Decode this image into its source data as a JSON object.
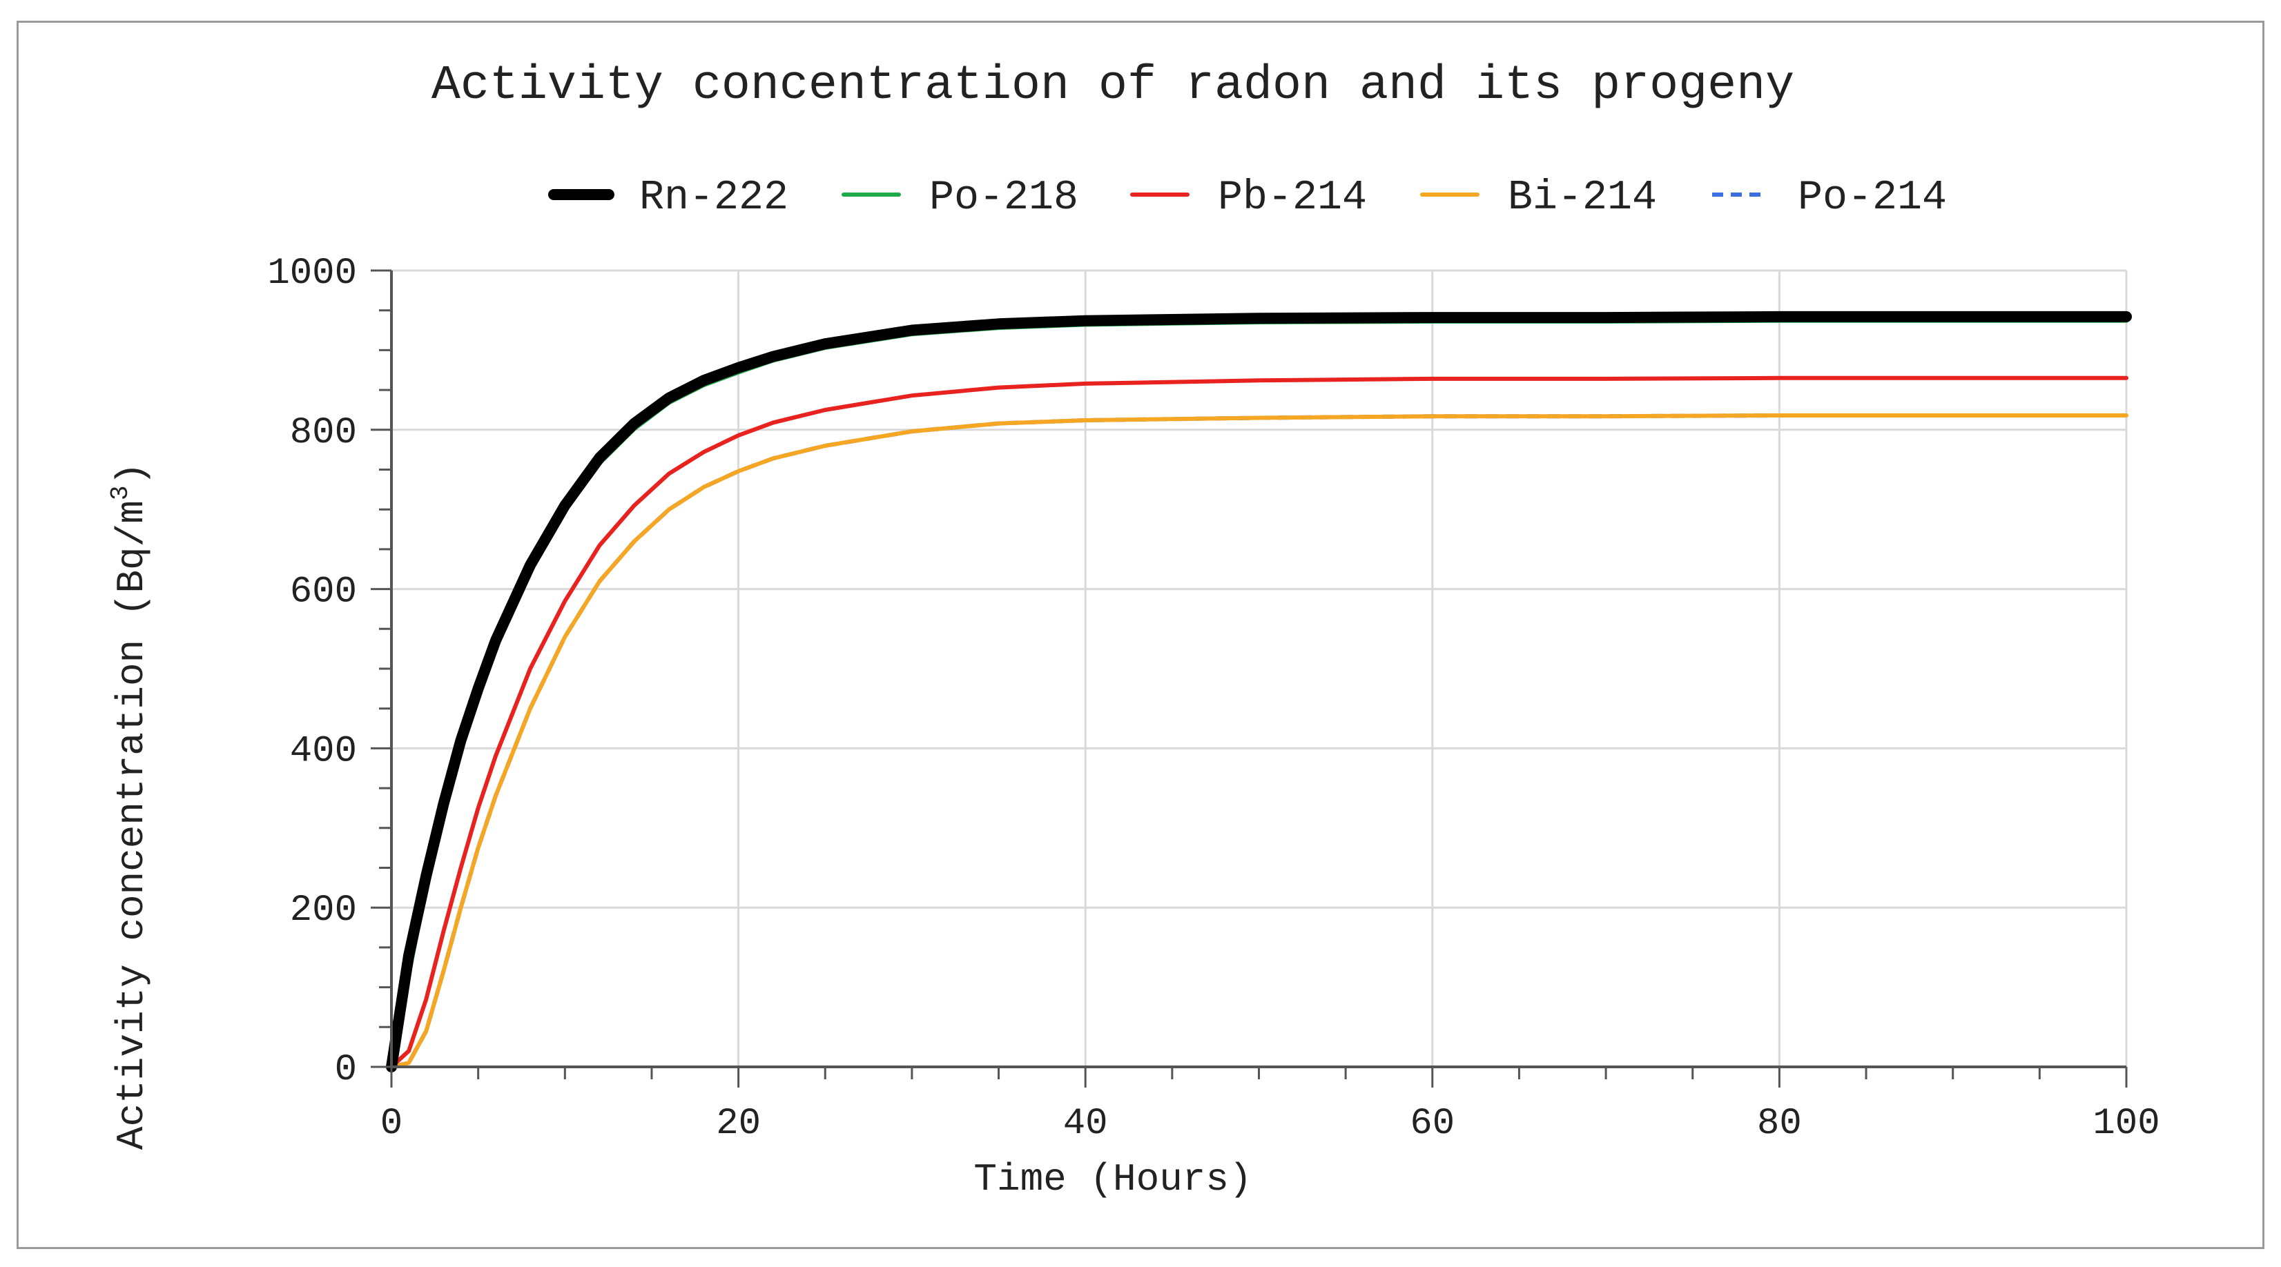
{
  "chart_data": {
    "type": "line",
    "title": "Activity concentration of radon and its progeny",
    "xlabel": "Time (Hours)",
    "ylabel_main": "Activity concentration (Bq/m",
    "ylabel_sup": "3",
    "ylabel_close": ")",
    "xlim": [
      0,
      100
    ],
    "ylim": [
      0,
      1000
    ],
    "xticks": [
      0,
      20,
      40,
      60,
      80,
      100
    ],
    "yticks": [
      0,
      200,
      400,
      600,
      800,
      1000
    ],
    "grid": true,
    "legend_position": "top",
    "x": [
      0,
      1,
      2,
      3,
      4,
      5,
      6,
      8,
      10,
      12,
      14,
      16,
      18,
      20,
      22,
      25,
      30,
      35,
      40,
      50,
      60,
      70,
      80,
      90,
      100
    ],
    "series": [
      {
        "name": "Rn-222",
        "color": "#000000",
        "style": "solid",
        "weight": "thick",
        "values": [
          0,
          140,
          240,
          330,
          410,
          475,
          535,
          630,
          705,
          765,
          808,
          840,
          862,
          878,
          892,
          908,
          925,
          933,
          937,
          940,
          941,
          941,
          942,
          942,
          942
        ]
      },
      {
        "name": "Po-218",
        "color": "#1faa4a",
        "style": "solid",
        "weight": "normal",
        "values": [
          0,
          115,
          225,
          315,
          398,
          465,
          525,
          622,
          698,
          758,
          801,
          834,
          856,
          872,
          887,
          903,
          920,
          928,
          932,
          935,
          936,
          936,
          937,
          937,
          937
        ]
      },
      {
        "name": "Pb-214",
        "color": "#e8231f",
        "style": "solid",
        "weight": "normal",
        "values": [
          0,
          20,
          85,
          170,
          250,
          325,
          390,
          500,
          585,
          655,
          705,
          745,
          772,
          793,
          809,
          825,
          843,
          853,
          858,
          862,
          864,
          864,
          865,
          865,
          865
        ]
      },
      {
        "name": "Bi-214",
        "color": "#f5a623",
        "style": "solid",
        "weight": "normal",
        "values": [
          0,
          5,
          45,
          120,
          200,
          275,
          340,
          450,
          540,
          610,
          660,
          700,
          728,
          748,
          764,
          780,
          798,
          808,
          812,
          815,
          817,
          817,
          818,
          818,
          818
        ]
      },
      {
        "name": "Po-214",
        "color": "#3b6fe0",
        "style": "dashed",
        "weight": "normal",
        "values": [
          0,
          5,
          45,
          120,
          200,
          275,
          340,
          450,
          540,
          610,
          660,
          700,
          728,
          748,
          764,
          780,
          798,
          808,
          812,
          815,
          817,
          817,
          818,
          818,
          818
        ]
      }
    ]
  }
}
